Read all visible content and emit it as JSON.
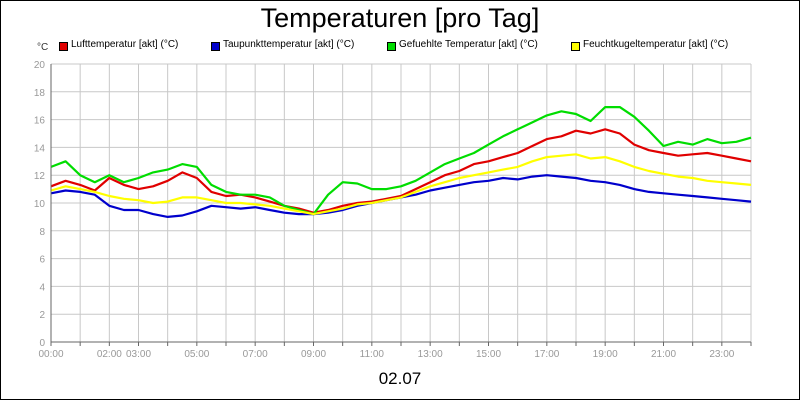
{
  "chart": {
    "title": "Temperaturen [pro Tag]",
    "unit_label": "°C",
    "date_label": "02.07"
  },
  "legend": [
    {
      "label": "Lufttemperatur [akt] (°C)",
      "color": "#e00000"
    },
    {
      "label": "Taupunkttemperatur [akt] (°C)",
      "color": "#0000cc"
    },
    {
      "label": "Gefuehlte Temperatur [akt] (°C)",
      "color": "#00dd00"
    },
    {
      "label": "Feuchtkugeltemperatur [akt] (°C)",
      "color": "#ffff00"
    }
  ],
  "chart_data": {
    "type": "line",
    "title": "Temperaturen [pro Tag]",
    "xlabel": "02.07",
    "ylabel": "°C",
    "xlim": [
      0,
      24
    ],
    "ylim": [
      0,
      20
    ],
    "grid": true,
    "legend_position": "top",
    "x_tick_labels": [
      "00:00",
      "02:00",
      "03:00",
      "05:00",
      "07:00",
      "09:00",
      "11:00",
      "13:00",
      "15:00",
      "17:00",
      "19:00",
      "21:00",
      "23:00"
    ],
    "x_tick_values": [
      0,
      2,
      3,
      5,
      7,
      9,
      11,
      13,
      15,
      17,
      19,
      21,
      23
    ],
    "y_tick_labels": [
      "0",
      "2",
      "4",
      "6",
      "8",
      "10",
      "12",
      "14",
      "16",
      "18",
      "20"
    ],
    "x": [
      0,
      0.5,
      1,
      1.5,
      2,
      2.5,
      3,
      3.5,
      4,
      4.5,
      5,
      5.5,
      6,
      6.5,
      7,
      7.5,
      8,
      8.5,
      9,
      9.5,
      10,
      10.5,
      11,
      11.5,
      12,
      12.5,
      13,
      13.5,
      14,
      14.5,
      15,
      15.5,
      16,
      16.5,
      17,
      17.5,
      18,
      18.5,
      19,
      19.5,
      20,
      20.5,
      21,
      21.5,
      22,
      22.5,
      23,
      23.5,
      24
    ],
    "series": [
      {
        "name": "Lufttemperatur [akt] (°C)",
        "color": "#e00000",
        "values": [
          11.2,
          11.6,
          11.3,
          10.9,
          11.8,
          11.3,
          11.0,
          11.2,
          11.6,
          12.2,
          11.8,
          10.8,
          10.5,
          10.6,
          10.4,
          10.1,
          9.8,
          9.6,
          9.3,
          9.5,
          9.8,
          10.0,
          10.1,
          10.3,
          10.5,
          11.0,
          11.5,
          12.0,
          12.3,
          12.8,
          13.0,
          13.3,
          13.6,
          14.1,
          14.6,
          14.8,
          15.2,
          15.0,
          15.3,
          15.0,
          14.2,
          13.8,
          13.6,
          13.4,
          13.5,
          13.6,
          13.4,
          13.2,
          13.0
        ]
      },
      {
        "name": "Taupunkttemperatur [akt] (°C)",
        "color": "#0000cc",
        "values": [
          10.7,
          10.9,
          10.8,
          10.6,
          9.8,
          9.5,
          9.5,
          9.2,
          9.0,
          9.1,
          9.4,
          9.8,
          9.7,
          9.6,
          9.7,
          9.5,
          9.3,
          9.2,
          9.2,
          9.3,
          9.5,
          9.8,
          10.0,
          10.2,
          10.4,
          10.6,
          10.9,
          11.1,
          11.3,
          11.5,
          11.6,
          11.8,
          11.7,
          11.9,
          12.0,
          11.9,
          11.8,
          11.6,
          11.5,
          11.3,
          11.0,
          10.8,
          10.7,
          10.6,
          10.5,
          10.4,
          10.3,
          10.2,
          10.1
        ]
      },
      {
        "name": "Gefuehlte Temperatur [akt] (°C)",
        "color": "#00dd00",
        "values": [
          12.6,
          13.0,
          12.0,
          11.5,
          12.0,
          11.5,
          11.8,
          12.2,
          12.4,
          12.8,
          12.6,
          11.3,
          10.8,
          10.6,
          10.6,
          10.4,
          9.8,
          9.5,
          9.2,
          10.6,
          11.5,
          11.4,
          11.0,
          11.0,
          11.2,
          11.6,
          12.2,
          12.8,
          13.2,
          13.6,
          14.2,
          14.8,
          15.3,
          15.8,
          16.3,
          16.6,
          16.4,
          15.9,
          16.9,
          16.9,
          16.2,
          15.2,
          14.1,
          14.4,
          14.2,
          14.6,
          14.3,
          14.4,
          14.7
        ]
      },
      {
        "name": "Feuchtkugeltemperatur [akt] (°C)",
        "color": "#ffff00",
        "values": [
          10.9,
          11.2,
          11.0,
          10.8,
          10.5,
          10.3,
          10.2,
          10.0,
          10.1,
          10.4,
          10.4,
          10.2,
          10.0,
          10.0,
          9.9,
          9.8,
          9.6,
          9.4,
          9.2,
          9.4,
          9.6,
          9.9,
          10.0,
          10.2,
          10.4,
          10.8,
          11.2,
          11.5,
          11.8,
          12.0,
          12.2,
          12.4,
          12.6,
          13.0,
          13.3,
          13.4,
          13.5,
          13.2,
          13.3,
          13.0,
          12.6,
          12.3,
          12.1,
          11.9,
          11.8,
          11.6,
          11.5,
          11.4,
          11.3
        ]
      }
    ]
  }
}
